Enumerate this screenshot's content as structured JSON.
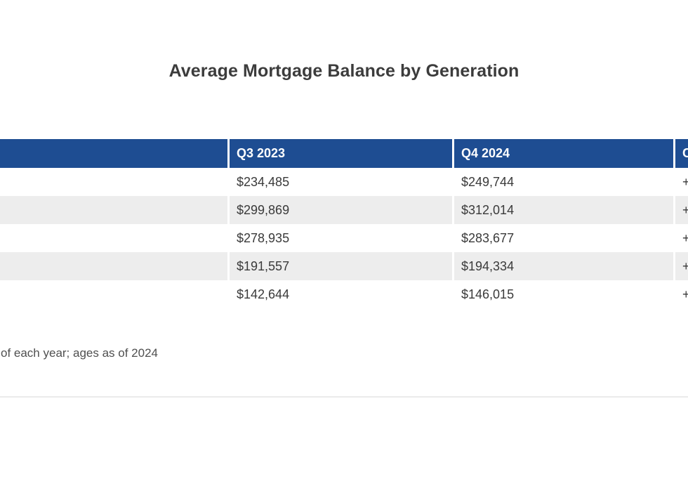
{
  "page": {
    "title": "Average Mortgage Balance by Generation",
    "footnote": "of each year; ages as of 2024"
  },
  "colors": {
    "header_bg": "#1e4d92",
    "header_text": "#ffffff",
    "row_alt_bg": "#ededed",
    "body_text": "#3a3a3a",
    "title_text": "#3c3c3c",
    "footnote_text": "#4f4f4f",
    "divider": "#ebebeb"
  },
  "table": {
    "columns": [
      {
        "label": ""
      },
      {
        "label": "Q3 2023"
      },
      {
        "label": "Q4 2024"
      },
      {
        "label": "C"
      }
    ],
    "rows": [
      {
        "cells": [
          "",
          "$234,485",
          "$249,744",
          "+"
        ]
      },
      {
        "cells": [
          "",
          "$299,869",
          "$312,014",
          "+"
        ]
      },
      {
        "cells": [
          "",
          "$278,935",
          "$283,677",
          "+"
        ]
      },
      {
        "cells": [
          "",
          "$191,557",
          "$194,334",
          "+"
        ]
      },
      {
        "cells": [
          "",
          "$142,644",
          "$146,015",
          "+"
        ]
      }
    ]
  },
  "chart_data": {
    "type": "table",
    "title": "Average Mortgage Balance by Generation",
    "columns": [
      "",
      "Q3 2023",
      "Q4 2024",
      "C"
    ],
    "rows": [
      [
        "",
        "$234,485",
        "$249,744",
        "+"
      ],
      [
        "",
        "$299,869",
        "$312,014",
        "+"
      ],
      [
        "",
        "$278,935",
        "$283,677",
        "+"
      ],
      [
        "",
        "$191,557",
        "$194,334",
        "+"
      ],
      [
        "",
        "$142,644",
        "$146,015",
        "+"
      ]
    ],
    "footnote": "of each year; ages as of 2024",
    "layout_hints": {
      "header_style": "blue banner, white bold text",
      "alternating_rows": true,
      "left_column_and_change_column_cut_off_by_viewport": true
    }
  }
}
